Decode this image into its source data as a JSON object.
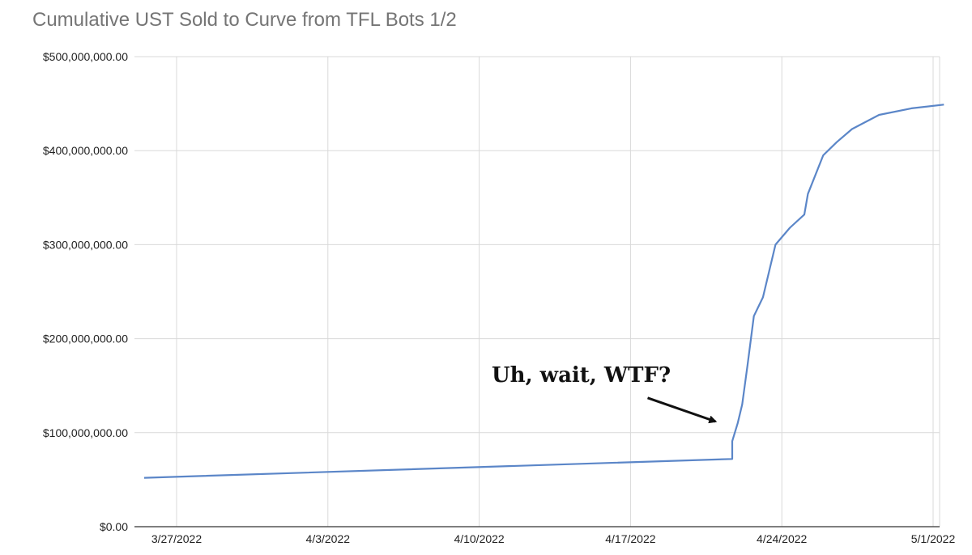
{
  "chart_data": {
    "type": "line",
    "title": "Cumulative UST Sold to Curve from TFL Bots 1/2",
    "xlabel": "",
    "ylabel": "",
    "ylim": [
      0,
      500000000
    ],
    "xlim": [
      "2022-03-26",
      "2022-05-01"
    ],
    "grid": true,
    "legend": "none",
    "y_ticks": [
      {
        "value": 0,
        "label": "$0.00"
      },
      {
        "value": 100000000,
        "label": "$100,000,000.00"
      },
      {
        "value": 200000000,
        "label": "$200,000,000.00"
      },
      {
        "value": 300000000,
        "label": "$300,000,000.00"
      },
      {
        "value": 400000000,
        "label": "$400,000,000.00"
      },
      {
        "value": 500000000,
        "label": "$500,000,000.00"
      }
    ],
    "x_ticks": [
      {
        "date": "2022-03-27",
        "label": "3/27/2022"
      },
      {
        "date": "2022-04-03",
        "label": "4/3/2022"
      },
      {
        "date": "2022-04-10",
        "label": "4/10/2022"
      },
      {
        "date": "2022-04-17",
        "label": "4/17/2022"
      },
      {
        "date": "2022-04-24",
        "label": "4/24/2022"
      },
      {
        "date": "2022-05-01",
        "label": "5/1/2022"
      }
    ],
    "series": [
      {
        "color": "#5b86c8",
        "points": [
          {
            "x": "2022-03-25T12:00",
            "y": 52000000
          },
          {
            "x": "2022-04-21T17:00",
            "y": 72000000
          },
          {
            "x": "2022-04-21T17:00",
            "y": 91000000
          },
          {
            "x": "2022-04-21T23:00",
            "y": 110000000
          },
          {
            "x": "2022-04-22T04:00",
            "y": 130000000
          },
          {
            "x": "2022-04-22T10:00",
            "y": 172000000
          },
          {
            "x": "2022-04-22T17:00",
            "y": 224000000
          },
          {
            "x": "2022-04-23T03:00",
            "y": 244000000
          },
          {
            "x": "2022-04-23T17:00",
            "y": 300000000
          },
          {
            "x": "2022-04-24T09:00",
            "y": 318000000
          },
          {
            "x": "2022-04-25T01:00",
            "y": 332000000
          },
          {
            "x": "2022-04-25T05:00",
            "y": 354000000
          },
          {
            "x": "2022-04-25T22:00",
            "y": 395000000
          },
          {
            "x": "2022-04-26T13:00",
            "y": 409000000
          },
          {
            "x": "2022-04-27T06:00",
            "y": 423000000
          },
          {
            "x": "2022-04-28T12:00",
            "y": 438000000
          },
          {
            "x": "2022-04-30T00:00",
            "y": 445000000
          },
          {
            "x": "2022-05-01T12:00",
            "y": 449000000
          }
        ]
      }
    ],
    "annotations": [
      {
        "text": "Uh, wait, WTF?",
        "arrow_from": {
          "x": "2022-04-17T19:00",
          "y": 137000000
        },
        "arrow_to": {
          "x": "2022-04-21T02:00",
          "y": 111000000
        }
      }
    ]
  }
}
